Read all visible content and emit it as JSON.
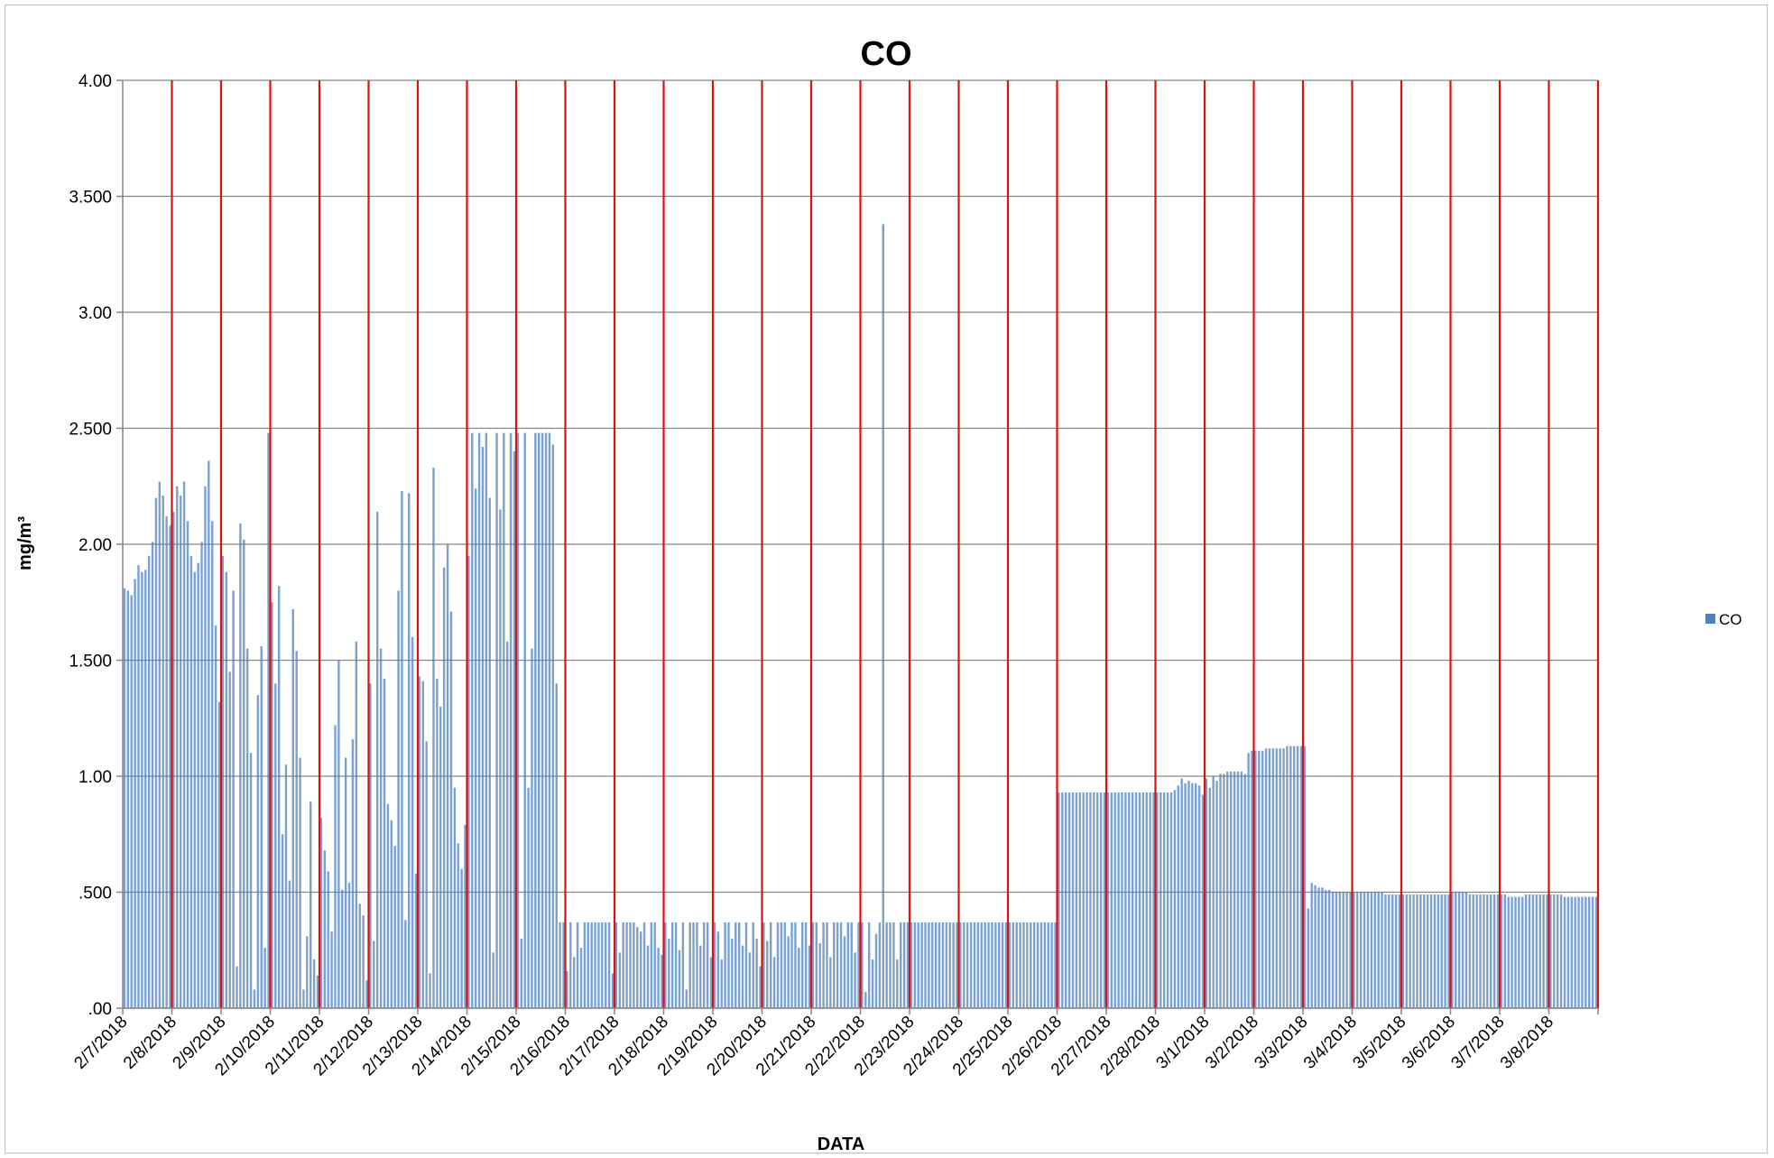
{
  "chart_data": {
    "type": "bar",
    "title": "CO",
    "xlabel": "DATA",
    "ylabel": "mg/m³",
    "ylim": [
      0,
      4
    ],
    "yticks": [
      {
        "value": 0,
        "label": ".00"
      },
      {
        "value": 0.5,
        "label": ".500"
      },
      {
        "value": 1.0,
        "label": "1.00"
      },
      {
        "value": 1.5,
        "label": "1.500"
      },
      {
        "value": 2.0,
        "label": "2.00"
      },
      {
        "value": 2.5,
        "label": "2.500"
      },
      {
        "value": 3.0,
        "label": "3.00"
      },
      {
        "value": 3.5,
        "label": "3.500"
      },
      {
        "value": 4.0,
        "label": "4.00"
      }
    ],
    "categories": [
      "2/7/2018",
      "2/8/2018",
      "2/9/2018",
      "2/10/2018",
      "2/11/2018",
      "2/12/2018",
      "2/13/2018",
      "2/14/2018",
      "2/15/2018",
      "2/16/2018",
      "2/17/2018",
      "2/18/2018",
      "2/19/2018",
      "2/20/2018",
      "2/21/2018",
      "2/22/2018",
      "2/23/2018",
      "2/24/2018",
      "2/25/2018",
      "2/26/2018",
      "2/27/2018",
      "2/28/2018",
      "3/1/2018",
      "3/2/2018",
      "3/3/2018",
      "3/4/2018",
      "3/5/2018",
      "3/6/2018",
      "3/7/2018",
      "3/8/2018"
    ],
    "grid": true,
    "day_boundary_lines": true,
    "legend_position": "right",
    "series": [
      {
        "name": "CO",
        "color": "#4f81bd",
        "daily_values": [
          [
            1.81,
            1.8,
            1.78,
            1.85,
            1.91,
            1.88,
            1.89,
            1.95,
            2.01,
            2.2,
            2.27,
            2.21,
            2.12,
            2.08
          ],
          [
            2.14,
            2.25,
            2.21,
            2.27,
            2.1,
            1.95,
            1.88,
            1.92,
            2.01,
            2.25,
            2.36,
            2.1,
            1.65,
            1.32
          ],
          [
            1.95,
            1.88,
            1.45,
            1.8,
            0.18,
            2.09,
            2.02,
            1.55,
            1.1,
            0.08,
            1.35,
            1.56,
            0.26,
            2.48
          ],
          [
            1.75,
            1.4,
            1.82,
            0.75,
            1.05,
            0.55,
            1.72,
            1.54,
            1.08,
            0.08,
            0.31,
            0.89,
            0.21,
            0.14
          ],
          [
            0.82,
            0.68,
            0.59,
            0.33,
            1.22,
            1.5,
            0.51,
            1.08,
            0.54,
            1.16,
            1.58,
            0.45,
            0.4,
            0.12
          ],
          [
            1.4,
            0.29,
            2.14,
            1.55,
            1.42,
            0.88,
            0.81,
            0.7,
            1.8,
            2.23,
            0.38,
            2.22,
            1.6,
            0.58
          ],
          [
            1.43,
            1.41,
            1.15,
            0.15,
            2.33,
            1.42,
            1.3,
            1.9,
            2.0,
            1.71,
            0.95,
            0.71,
            0.6,
            0.79
          ],
          [
            1.95,
            2.48,
            2.24,
            2.48,
            2.42,
            2.48,
            2.2,
            0.24,
            2.48,
            2.15,
            2.48,
            1.58,
            2.48,
            2.4
          ],
          [
            2.48,
            0.3,
            2.48,
            0.95,
            1.55,
            2.48,
            2.48,
            2.48,
            2.48,
            2.48,
            2.43,
            1.4,
            0.37,
            0.37
          ],
          [
            0.16,
            0.37,
            0.22,
            0.37,
            0.26,
            0.37,
            0.37,
            0.37,
            0.37,
            0.37,
            0.37,
            0.37,
            0.37,
            0.15
          ],
          [
            0.37,
            0.24,
            0.37,
            0.37,
            0.37,
            0.37,
            0.35,
            0.33,
            0.37,
            0.27,
            0.37,
            0.37,
            0.26,
            0.23
          ],
          [
            0.37,
            0.3,
            0.37,
            0.37,
            0.25,
            0.37,
            0.08,
            0.37,
            0.37,
            0.37,
            0.27,
            0.37,
            0.37,
            0.22
          ],
          [
            0.37,
            0.33,
            0.21,
            0.37,
            0.37,
            0.3,
            0.37,
            0.37,
            0.27,
            0.37,
            0.24,
            0.37,
            0.3,
            0.18
          ],
          [
            0.37,
            0.29,
            0.37,
            0.22,
            0.37,
            0.37,
            0.37,
            0.31,
            0.37,
            0.37,
            0.26,
            0.37,
            0.37,
            0.27
          ],
          [
            0.37,
            0.37,
            0.28,
            0.37,
            0.37,
            0.22,
            0.37,
            0.37,
            0.37,
            0.31,
            0.37,
            0.37,
            0.24,
            0.37
          ],
          [
            0.37,
            0.07,
            0.37,
            0.21,
            0.32,
            0.37,
            3.38,
            0.37,
            0.37,
            0.37,
            0.21,
            0.37,
            0.37,
            0.37
          ],
          [
            0.37,
            0.37,
            0.37,
            0.37,
            0.37,
            0.37,
            0.37,
            0.37,
            0.37,
            0.37,
            0.37,
            0.37,
            0.37,
            0.37
          ],
          [
            0.37,
            0.37,
            0.37,
            0.37,
            0.37,
            0.37,
            0.37,
            0.37,
            0.37,
            0.37,
            0.37,
            0.37,
            0.37,
            0.37
          ],
          [
            0.37,
            0.37,
            0.37,
            0.37,
            0.37,
            0.37,
            0.37,
            0.37,
            0.37,
            0.37,
            0.37,
            0.37,
            0.37,
            0.37
          ],
          [
            0.93,
            0.93,
            0.93,
            0.93,
            0.93,
            0.93,
            0.93,
            0.93,
            0.93,
            0.93,
            0.93,
            0.93,
            0.93,
            0.93
          ],
          [
            0.93,
            0.93,
            0.93,
            0.93,
            0.93,
            0.93,
            0.93,
            0.93,
            0.93,
            0.93,
            0.93,
            0.93,
            0.93,
            0.93
          ],
          [
            0.93,
            0.93,
            0.93,
            0.93,
            0.93,
            0.94,
            0.96,
            0.99,
            0.97,
            0.98,
            0.97,
            0.97,
            0.96,
            0.92
          ],
          [
            0.99,
            0.95,
            1.0,
            0.98,
            1.01,
            1.01,
            1.02,
            1.02,
            1.02,
            1.02,
            1.02,
            1.01,
            1.1,
            1.11
          ],
          [
            1.11,
            1.11,
            1.11,
            1.12,
            1.12,
            1.12,
            1.12,
            1.12,
            1.12,
            1.13,
            1.13,
            1.13,
            1.13,
            1.13
          ],
          [
            1.13,
            0.43,
            0.54,
            0.53,
            0.52,
            0.52,
            0.51,
            0.51,
            0.5,
            0.5,
            0.5,
            0.5,
            0.5,
            0.5
          ],
          [
            0.5,
            0.5,
            0.5,
            0.5,
            0.5,
            0.5,
            0.5,
            0.5,
            0.5,
            0.49,
            0.49,
            0.49,
            0.49,
            0.49
          ],
          [
            0.49,
            0.49,
            0.49,
            0.49,
            0.49,
            0.49,
            0.49,
            0.49,
            0.49,
            0.49,
            0.49,
            0.49,
            0.49,
            0.49
          ],
          [
            0.5,
            0.5,
            0.5,
            0.5,
            0.5,
            0.49,
            0.49,
            0.49,
            0.49,
            0.49,
            0.49,
            0.49,
            0.49,
            0.49
          ],
          [
            0.49,
            0.49,
            0.48,
            0.48,
            0.48,
            0.48,
            0.48,
            0.49,
            0.49,
            0.49,
            0.49,
            0.49,
            0.49,
            0.49
          ],
          [
            0.49,
            0.49,
            0.49,
            0.49,
            0.48,
            0.48,
            0.48,
            0.48,
            0.48,
            0.48,
            0.48,
            0.48,
            0.48,
            0.48
          ]
        ]
      }
    ]
  }
}
